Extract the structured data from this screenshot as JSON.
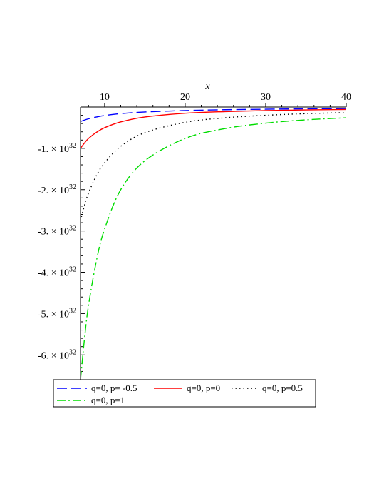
{
  "chart_data": {
    "type": "line",
    "xlabel": "x",
    "ylabel": "",
    "xlim": [
      7,
      40
    ],
    "ylim": [
      -6.6e+32,
      0
    ],
    "x_ticks": [
      {
        "value": 10,
        "label": "10"
      },
      {
        "value": 20,
        "label": "20"
      },
      {
        "value": 30,
        "label": "30"
      },
      {
        "value": 40,
        "label": "40"
      }
    ],
    "y_ticks": [
      {
        "value": -1e+32,
        "mant": "-1.",
        "exp": "32"
      },
      {
        "value": -2e+32,
        "mant": "-2.",
        "exp": "32"
      },
      {
        "value": -3e+32,
        "mant": "-3.",
        "exp": "32"
      },
      {
        "value": -4e+32,
        "mant": "-4.",
        "exp": "32"
      },
      {
        "value": -5e+32,
        "mant": "-5.",
        "exp": "32"
      },
      {
        "value": -6e+32,
        "mant": "-6.",
        "exp": "32"
      }
    ],
    "x": [
      7,
      7.5,
      8,
      9,
      10,
      12,
      15,
      20,
      25,
      30,
      35,
      40
    ],
    "series": [
      {
        "name": "q=0, p= -0.5",
        "color": "#0000ff",
        "dash": "14 6",
        "values": [
          -3.5e+31,
          -3.15e+31,
          -2.85e+31,
          -2.4e+31,
          -2.05e+31,
          -1.6e+31,
          -1.2e+31,
          -8.5e+30,
          -6.5e+30,
          -5.3e+30,
          -4.4e+30,
          -3.8e+30
        ]
      },
      {
        "name": "q=0, p=0",
        "color": "#ff0000",
        "dash": "",
        "values": [
          -1e+32,
          -8.7e+31,
          -7.6e+31,
          -6.1e+31,
          -5e+31,
          -3.6e+31,
          -2.4e+31,
          -1.5e+31,
          -1.1e+31,
          -8.5e+30,
          -7e+30,
          -6e+30
        ]
      },
      {
        "name": "q=0, p=0.5",
        "color": "#000000",
        "dash": "1.5 4",
        "values": [
          -2.75e+32,
          -2.38e+32,
          -2.08e+32,
          -1.65e+32,
          -1.35e+32,
          -9.5e+31,
          -6.2e+31,
          -3.7e+31,
          -2.6e+31,
          -2e+31,
          -1.6e+31,
          -1.35e+31
        ]
      },
      {
        "name": "q=0, p=1",
        "color": "#00dd00",
        "dash": "12 4 2 4",
        "values": [
          -6.6e+32,
          -5.6e+32,
          -4.8e+32,
          -3.7e+32,
          -2.95e+32,
          -2e+32,
          -1.3e+32,
          -7.6e+31,
          -5.2e+31,
          -3.9e+31,
          -3.1e+31,
          -2.6e+31
        ]
      }
    ],
    "legend_placement": "bottom",
    "grid": false
  }
}
